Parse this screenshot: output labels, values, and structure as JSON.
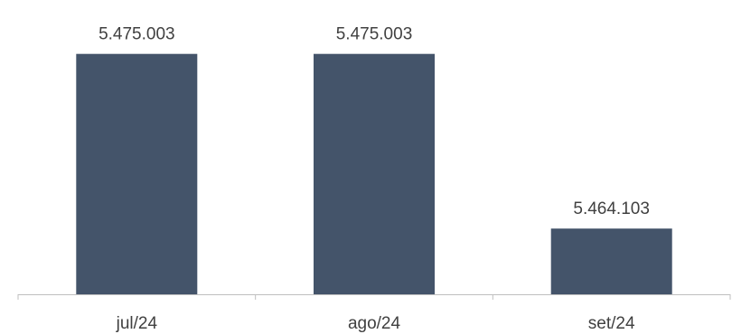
{
  "chart_data": {
    "type": "bar",
    "categories": [
      "jul/24",
      "ago/24",
      "set/24"
    ],
    "values": [
      5475003,
      5475003,
      5464103
    ],
    "data_labels": [
      "5.475.003",
      "5.475.003",
      "5.464.103"
    ],
    "title": "",
    "xlabel": "",
    "ylabel": "",
    "ylim": [
      5460000,
      5476000
    ],
    "grid": false,
    "legend": "none",
    "bar_color": "#44546a",
    "axis_color": "#bfbfbf",
    "text_color": "#404040"
  }
}
